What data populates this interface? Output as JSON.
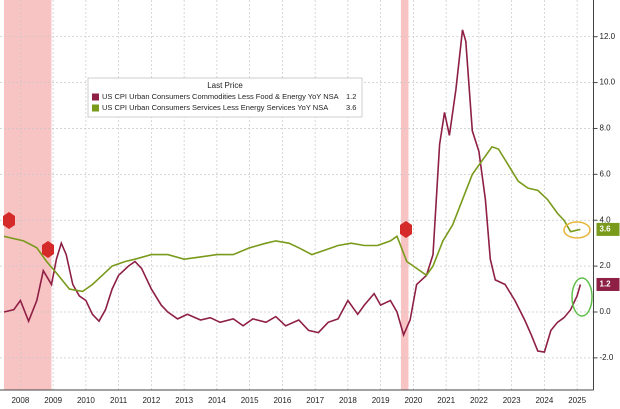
{
  "chart_data": {
    "type": "line",
    "legend_title": "Last Price",
    "series": [
      {
        "name": "US CPI Urban Consumers Commodities Less Food & Energy YoY NSA",
        "color": "#8e1f45",
        "x": [
          2008.0,
          2008.3,
          2008.5,
          2008.75,
          2009.0,
          2009.2,
          2009.45,
          2009.6,
          2009.75,
          2009.9,
          2010.1,
          2010.3,
          2010.5,
          2010.7,
          2010.9,
          2011.1,
          2011.3,
          2011.5,
          2011.8,
          2012.0,
          2012.2,
          2012.5,
          2012.8,
          2013.0,
          2013.3,
          2013.6,
          2014.0,
          2014.3,
          2014.6,
          2015.0,
          2015.3,
          2015.6,
          2016.0,
          2016.3,
          2016.6,
          2017.0,
          2017.3,
          2017.6,
          2017.9,
          2018.2,
          2018.5,
          2018.8,
          2019.0,
          2019.3,
          2019.5,
          2019.8,
          2020.0,
          2020.2,
          2020.4,
          2020.6,
          2020.9,
          2021.1,
          2021.3,
          2021.45,
          2021.6,
          2021.8,
          2022.0,
          2022.1,
          2022.3,
          2022.5,
          2022.7,
          2022.85,
          2023.0,
          2023.3,
          2023.6,
          2023.9,
          2024.1,
          2024.3,
          2024.5,
          2024.7,
          2024.9,
          2025.1,
          2025.3,
          2025.5,
          2025.6
        ],
        "values": [
          0,
          0.1,
          0.5,
          -0.4,
          0.5,
          1.8,
          1.2,
          2.3,
          3.0,
          2.5,
          1.2,
          0.7,
          0.5,
          -0.1,
          -0.4,
          0.1,
          1.0,
          1.6,
          2.0,
          2.2,
          1.9,
          1.0,
          0.3,
          0,
          -0.3,
          -0.1,
          -0.35,
          -0.25,
          -0.45,
          -0.3,
          -0.6,
          -0.3,
          -0.45,
          -0.2,
          -0.6,
          -0.35,
          -0.8,
          -0.9,
          -0.45,
          -0.3,
          0.5,
          -0.1,
          0.3,
          0.8,
          0.3,
          0.5,
          0,
          -1.0,
          -0.35,
          1.2,
          1.6,
          2.5,
          7.3,
          8.7,
          7.7,
          9.7,
          12.3,
          11.8,
          7.9,
          7.0,
          4.9,
          2.3,
          1.4,
          1.2,
          0.5,
          -0.35,
          -1.0,
          -1.7,
          -1.75,
          -0.8,
          -0.45,
          -0.25,
          0.1,
          0.7,
          1.2
        ]
      },
      {
        "name": "US CPI Urban Consumers Services Less Energy Services YoY NSA",
        "color": "#7a9a1c",
        "x": [
          2008.0,
          2008.3,
          2008.6,
          2009.0,
          2009.3,
          2009.6,
          2010.0,
          2010.4,
          2010.7,
          2011.0,
          2011.3,
          2011.7,
          2012.0,
          2012.5,
          2013.0,
          2013.5,
          2014.0,
          2014.5,
          2015.0,
          2015.5,
          2016.0,
          2016.3,
          2016.7,
          2017.0,
          2017.4,
          2017.8,
          2018.2,
          2018.6,
          2019.0,
          2019.4,
          2019.8,
          2020.0,
          2020.3,
          2020.6,
          2020.9,
          2021.1,
          2021.4,
          2021.7,
          2022.0,
          2022.3,
          2022.6,
          2022.9,
          2023.1,
          2023.4,
          2023.7,
          2024.0,
          2024.3,
          2024.6,
          2024.9,
          2025.1,
          2025.3,
          2025.6
        ],
        "values": [
          3.3,
          3.2,
          3.1,
          2.8,
          2.2,
          1.7,
          1.0,
          0.9,
          1.2,
          1.6,
          2.0,
          2.2,
          2.3,
          2.5,
          2.5,
          2.3,
          2.4,
          2.5,
          2.5,
          2.8,
          3.0,
          3.1,
          3.0,
          2.8,
          2.5,
          2.7,
          2.9,
          3.0,
          2.9,
          2.9,
          3.1,
          3.3,
          2.2,
          1.9,
          1.6,
          2.0,
          3.1,
          3.8,
          4.9,
          6.0,
          6.6,
          7.2,
          7.1,
          6.4,
          5.7,
          5.4,
          5.3,
          4.9,
          4.3,
          4.0,
          3.5,
          3.6
        ]
      }
    ],
    "value_labels": [
      "1.2",
      "3.6"
    ],
    "shaded": [
      [
        2008.0,
        2009.45
      ],
      [
        2020.12,
        2020.35
      ]
    ],
    "xlim": [
      2008,
      2026
    ],
    "xticks": [
      {
        "value": 2008.5,
        "label": "2008"
      },
      {
        "value": 2009.5,
        "label": "2009"
      },
      {
        "value": 2010.5,
        "label": "2010"
      },
      {
        "value": 2011.5,
        "label": "2011"
      },
      {
        "value": 2012.5,
        "label": "2012"
      },
      {
        "value": 2013.5,
        "label": "2013"
      },
      {
        "value": 2014.5,
        "label": "2014"
      },
      {
        "value": 2015.5,
        "label": "2015"
      },
      {
        "value": 2016.5,
        "label": "2016"
      },
      {
        "value": 2017.5,
        "label": "2017"
      },
      {
        "value": 2018.5,
        "label": "2018"
      },
      {
        "value": 2019.5,
        "label": "2019"
      },
      {
        "value": 2020.5,
        "label": "2020"
      },
      {
        "value": 2021.5,
        "label": "2021"
      },
      {
        "value": 2022.5,
        "label": "2022"
      },
      {
        "value": 2023.5,
        "label": "2023"
      },
      {
        "value": 2024.5,
        "label": "2024"
      },
      {
        "value": 2025.5,
        "label": "2025"
      }
    ],
    "ylim": [
      -3.4,
      13.6
    ],
    "yticks": [
      {
        "value": -2,
        "label": "-2.0"
      },
      {
        "value": 0,
        "label": "0.0"
      },
      {
        "value": 2,
        "label": "2.0"
      },
      {
        "value": 4,
        "label": "4.0"
      },
      {
        "value": 6,
        "label": "6.0"
      },
      {
        "value": 8,
        "label": "8.0"
      },
      {
        "value": 10,
        "label": "10.0"
      },
      {
        "value": 12,
        "label": "12.0"
      }
    ],
    "grid": true
  }
}
